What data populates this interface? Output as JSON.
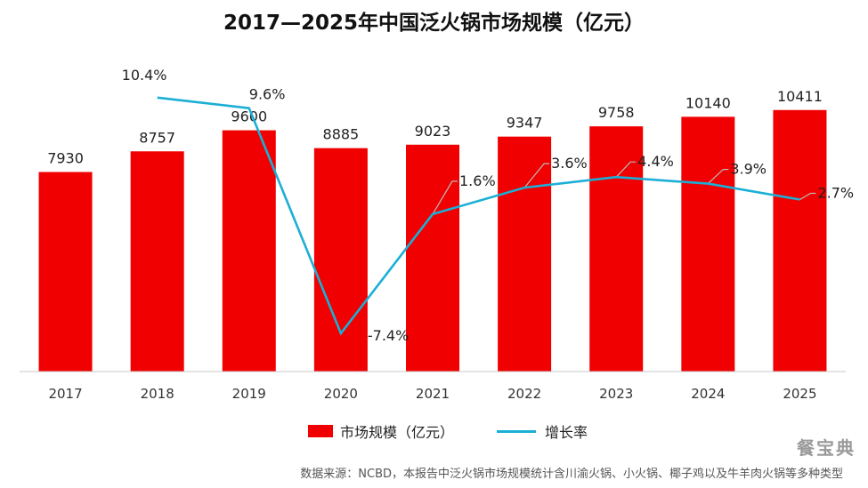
{
  "title": "2017—2025年中国泛火锅市场规模（亿元）",
  "source": "数据来源：NCBD，本报告中泛火锅市场规模统计含川渝火锅、小火锅、椰子鸡以及牛羊肉火锅等多种类型",
  "logo": "餐宝典",
  "colors": {
    "bar": "#f00000",
    "line": "#1bafd6",
    "callout": "#bbbbbb"
  },
  "chart_data": {
    "type": "bar",
    "title": "2017—2025年中国泛火锅市场规模（亿元）",
    "categories": [
      "2017",
      "2018",
      "2019",
      "2020",
      "2021",
      "2022",
      "2023",
      "2024",
      "2025"
    ],
    "series": [
      {
        "name": "市场规模（亿元）",
        "type": "bar",
        "axis": "left",
        "values": [
          7930,
          8757,
          9600,
          8885,
          9023,
          9347,
          9758,
          10140,
          10411
        ],
        "labels": [
          "7930",
          "8757",
          "9600",
          "8885",
          "9023",
          "9347",
          "9758",
          "10140",
          "10411"
        ]
      },
      {
        "name": "增长率",
        "type": "line",
        "axis": "right",
        "values": [
          null,
          10.4,
          9.6,
          -7.4,
          1.6,
          3.6,
          4.4,
          3.9,
          2.7
        ],
        "labels": [
          "",
          "10.4%",
          "9.6%",
          "-7.4%",
          "1.6%",
          "3.6%",
          "4.4%",
          "3.9%",
          "2.7%"
        ]
      }
    ],
    "legend": [
      "市场规模（亿元）",
      "增长率"
    ],
    "legend_position": "bottom",
    "grid": false
  }
}
